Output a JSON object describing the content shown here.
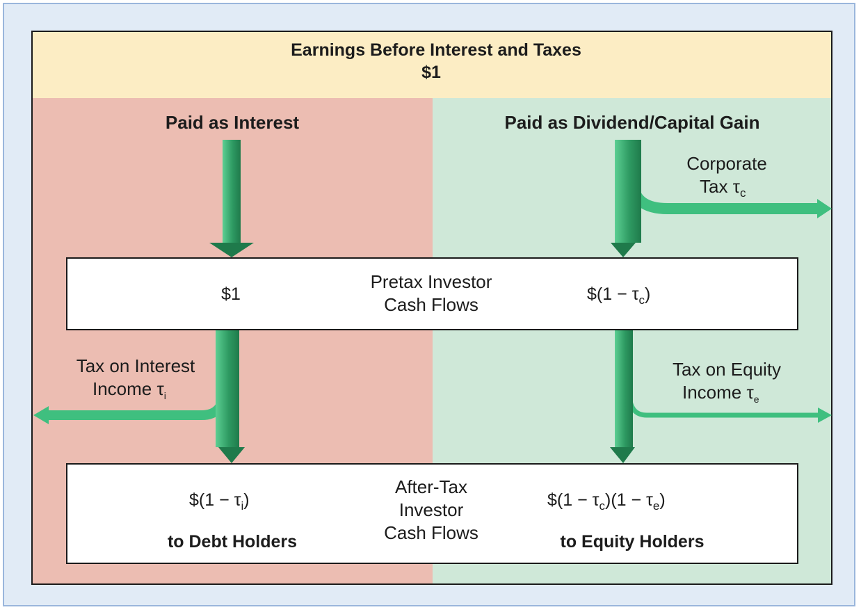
{
  "header": {
    "title": "Earnings Before Interest and Taxes",
    "amount": "$1"
  },
  "left_column": {
    "heading": "Paid as Interest",
    "pretax_value": "$1",
    "tax_label_line1": "Tax on Interest",
    "tax_label_line2": "Income τ",
    "tax_subscript": "i",
    "aftertax_value": "$(1 − τ",
    "aftertax_sub": "i",
    "aftertax_close": ")",
    "recipient": "to Debt Holders"
  },
  "right_column": {
    "heading": "Paid as Dividend/Capital Gain",
    "corp_tax_line1": "Corporate",
    "corp_tax_line2": "Tax τ",
    "corp_tax_subscript": "c",
    "pretax_value": "$(1 − τ",
    "pretax_sub": "c",
    "pretax_close": ")",
    "tax_label_line1": "Tax on Equity",
    "tax_label_line2": "Income τ",
    "tax_subscript": "e",
    "aftertax_value_a": "$(1 − τ",
    "aftertax_sub_a": "c",
    "aftertax_value_b": ")(1 − τ",
    "aftertax_sub_b": "e",
    "aftertax_close": ")",
    "recipient": "to Equity Holders"
  },
  "center": {
    "pretax_line1": "Pretax Investor",
    "pretax_line2": "Cash Flows",
    "aftertax_line1": "After-Tax",
    "aftertax_line2": "Investor",
    "aftertax_line3": "Cash Flows"
  },
  "colors": {
    "header_band": "#fcedc4",
    "debt_band": "#ecbdb2",
    "equity_band": "#cfe8d8",
    "arrow_green": "#2e9a62",
    "arrow_light": "#3fbf7f"
  }
}
